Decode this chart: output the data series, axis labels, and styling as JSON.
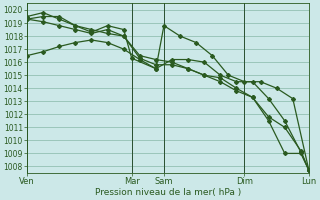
{
  "background_color": "#cce8e8",
  "grid_color": "#88b8a8",
  "line_color": "#2a5a20",
  "xlabel": "Pression niveau de la mer( hPa )",
  "ylim": [
    1007.5,
    1020.5
  ],
  "yticks": [
    1008,
    1009,
    1010,
    1011,
    1012,
    1013,
    1014,
    1015,
    1016,
    1017,
    1018,
    1019,
    1020
  ],
  "xtick_labels": [
    "Ven",
    "Mar",
    "Sam",
    "Dim",
    "Lun"
  ],
  "xtick_positions": [
    0,
    13,
    17,
    27,
    35
  ],
  "lines": [
    {
      "x": [
        0,
        2,
        4,
        6,
        8,
        10,
        12,
        14,
        16,
        18,
        20,
        22,
        24,
        26,
        28,
        30,
        32,
        34,
        35
      ],
      "y": [
        1016.5,
        1016.8,
        1017.2,
        1017.5,
        1017.7,
        1017.5,
        1017.0,
        1016.2,
        1015.5,
        1016.2,
        1016.2,
        1016.0,
        1015.0,
        1014.5,
        1014.5,
        1013.2,
        1011.5,
        1009.1,
        1007.7
      ]
    },
    {
      "x": [
        0,
        2,
        4,
        6,
        8,
        10,
        12,
        14,
        16,
        18,
        20,
        22,
        24,
        26,
        28,
        30,
        32,
        34,
        35
      ],
      "y": [
        1019.3,
        1019.1,
        1018.8,
        1018.5,
        1018.2,
        1018.5,
        1018.0,
        1016.3,
        1015.8,
        1015.8,
        1015.5,
        1015.0,
        1014.8,
        1014.0,
        1013.3,
        1011.8,
        1011.0,
        1009.2,
        1007.7
      ]
    },
    {
      "x": [
        0,
        2,
        4,
        6,
        8,
        10,
        12,
        13,
        16,
        17,
        19,
        21,
        23,
        25,
        27,
        29,
        31,
        33,
        35
      ],
      "y": [
        1019.5,
        1019.8,
        1019.3,
        1018.8,
        1018.3,
        1018.8,
        1018.5,
        1016.3,
        1015.5,
        1018.8,
        1018.0,
        1017.5,
        1016.5,
        1015.0,
        1014.5,
        1014.5,
        1014.0,
        1013.2,
        1007.7
      ]
    },
    {
      "x": [
        0,
        2,
        4,
        6,
        8,
        10,
        12,
        14,
        16,
        18,
        20,
        22,
        24,
        26,
        28,
        30,
        32,
        34,
        35
      ],
      "y": [
        1019.3,
        1019.5,
        1019.5,
        1018.8,
        1018.5,
        1018.2,
        1018.0,
        1016.5,
        1016.2,
        1016.0,
        1015.5,
        1015.0,
        1014.5,
        1013.8,
        1013.3,
        1011.5,
        1009.0,
        1009.0,
        1007.7
      ]
    }
  ],
  "vline_positions": [
    0,
    13,
    17,
    27,
    35
  ],
  "vline_color": "#2a5030",
  "marker": "D",
  "markersize": 2.0,
  "linewidth": 0.9,
  "label_fontsize": 6.5,
  "ytick_fontsize": 5.5,
  "xtick_fontsize": 6.0
}
